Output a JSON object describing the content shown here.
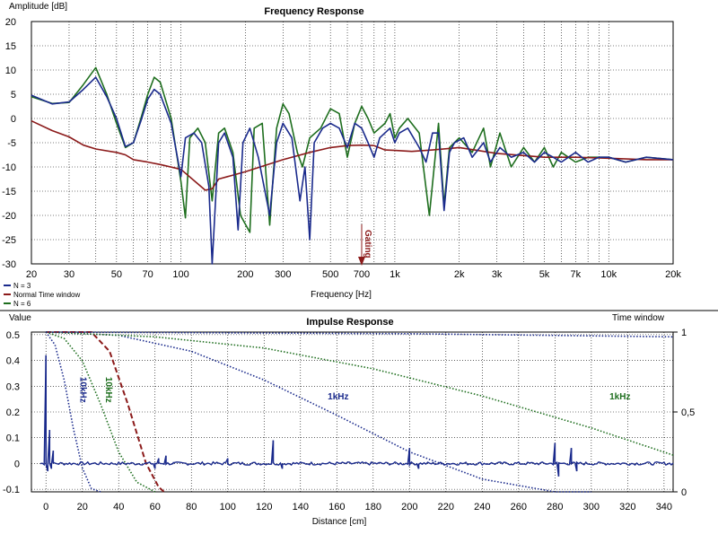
{
  "colors": {
    "blue": "#1a2a8c",
    "red": "#8b1a1a",
    "green": "#1e6e1e",
    "grid": "#000000"
  },
  "chart_data": [
    {
      "type": "line",
      "title": "Frequency Response",
      "ylabel": "Amplitude [dB]",
      "xlabel": "Frequency [Hz]",
      "x_scale": "log",
      "xlim": [
        20,
        20000
      ],
      "ylim": [
        -30,
        20
      ],
      "y_ticks": [
        "20",
        "15",
        "10",
        "5",
        "0",
        "-5",
        "-10",
        "-15",
        "-20",
        "-25",
        "-30"
      ],
      "x_ticks": [
        "20",
        "30",
        "50",
        "70",
        "100",
        "200",
        "300",
        "500",
        "700",
        "1k",
        "2k",
        "3k",
        "5k",
        "7k",
        "10k",
        "20k"
      ],
      "grid": true,
      "legend_position": "bottom-left",
      "annotation": {
        "text": "Gating",
        "x": 700
      },
      "series": [
        {
          "name": "N = 3",
          "color": "blue",
          "points": [
            [
              20,
              4.8
            ],
            [
              25,
              3.0
            ],
            [
              30,
              3.4
            ],
            [
              35,
              6.0
            ],
            [
              40,
              8.5
            ],
            [
              45,
              4.5
            ],
            [
              50,
              0
            ],
            [
              55,
              -5.8
            ],
            [
              60,
              -5.0
            ],
            [
              65,
              -0.5
            ],
            [
              70,
              4.0
            ],
            [
              75,
              6.0
            ],
            [
              80,
              5.0
            ],
            [
              90,
              -1.0
            ],
            [
              100,
              -12
            ],
            [
              105,
              -4
            ],
            [
              115,
              -3
            ],
            [
              125,
              -5
            ],
            [
              135,
              -14
            ],
            [
              140,
              -30
            ],
            [
              150,
              -5
            ],
            [
              160,
              -3
            ],
            [
              175,
              -8
            ],
            [
              185,
              -23
            ],
            [
              195,
              -5
            ],
            [
              210,
              -2
            ],
            [
              230,
              -8
            ],
            [
              260,
              -20
            ],
            [
              280,
              -5
            ],
            [
              300,
              -1
            ],
            [
              330,
              -4
            ],
            [
              360,
              -17
            ],
            [
              380,
              -10
            ],
            [
              400,
              -25
            ],
            [
              420,
              -5
            ],
            [
              460,
              -2
            ],
            [
              500,
              -1
            ],
            [
              550,
              -2
            ],
            [
              600,
              -6
            ],
            [
              650,
              -1
            ],
            [
              700,
              -2
            ],
            [
              750,
              -5
            ],
            [
              800,
              -8
            ],
            [
              850,
              -4
            ],
            [
              950,
              -2
            ],
            [
              1000,
              -5
            ],
            [
              1050,
              -3
            ],
            [
              1150,
              -2
            ],
            [
              1300,
              -6
            ],
            [
              1400,
              -9
            ],
            [
              1500,
              -3
            ],
            [
              1600,
              -3
            ],
            [
              1700,
              -19
            ],
            [
              1800,
              -7
            ],
            [
              1900,
              -5
            ],
            [
              2100,
              -4
            ],
            [
              2300,
              -8
            ],
            [
              2600,
              -5
            ],
            [
              2800,
              -9
            ],
            [
              3100,
              -6
            ],
            [
              3500,
              -8
            ],
            [
              4000,
              -7
            ],
            [
              4500,
              -9
            ],
            [
              5000,
              -7
            ],
            [
              5500,
              -8
            ],
            [
              6000,
              -9
            ],
            [
              7000,
              -7
            ],
            [
              8000,
              -9
            ],
            [
              9000,
              -8
            ],
            [
              10000,
              -8
            ],
            [
              12000,
              -9
            ],
            [
              15000,
              -8
            ],
            [
              20000,
              -8.5
            ]
          ]
        },
        {
          "name": "Normal Time window",
          "color": "red",
          "points": [
            [
              20,
              -0.5
            ],
            [
              25,
              -2.5
            ],
            [
              30,
              -3.8
            ],
            [
              35,
              -5.5
            ],
            [
              40,
              -6.3
            ],
            [
              50,
              -7.0
            ],
            [
              55,
              -7.5
            ],
            [
              60,
              -8.5
            ],
            [
              70,
              -9.0
            ],
            [
              80,
              -9.5
            ],
            [
              100,
              -10.5
            ],
            [
              120,
              -13.5
            ],
            [
              130,
              -14.8
            ],
            [
              140,
              -14.5
            ],
            [
              150,
              -12.5
            ],
            [
              200,
              -11.0
            ],
            [
              300,
              -8.5
            ],
            [
              400,
              -7.0
            ],
            [
              500,
              -6.0
            ],
            [
              600,
              -5.6
            ],
            [
              700,
              -5.5
            ],
            [
              800,
              -5.6
            ],
            [
              900,
              -6.5
            ],
            [
              1000,
              -6.6
            ],
            [
              1200,
              -6.8
            ],
            [
              1500,
              -6.5
            ],
            [
              2000,
              -6.0
            ],
            [
              3000,
              -7.2
            ],
            [
              5000,
              -8.0
            ],
            [
              7000,
              -8.0
            ],
            [
              10000,
              -8.2
            ],
            [
              15000,
              -8.5
            ],
            [
              20000,
              -8.5
            ]
          ]
        },
        {
          "name": "N = 6",
          "color": "green",
          "points": [
            [
              20,
              4.5
            ],
            [
              25,
              3.1
            ],
            [
              30,
              3.3
            ],
            [
              35,
              7.0
            ],
            [
              40,
              10.5
            ],
            [
              45,
              5.0
            ],
            [
              50,
              -1.0
            ],
            [
              55,
              -6.0
            ],
            [
              60,
              -5.0
            ],
            [
              65,
              0
            ],
            [
              70,
              5.0
            ],
            [
              75,
              8.5
            ],
            [
              80,
              7.5
            ],
            [
              90,
              0
            ],
            [
              100,
              -13
            ],
            [
              105,
              -20.5
            ],
            [
              110,
              -4
            ],
            [
              120,
              -2
            ],
            [
              130,
              -5
            ],
            [
              140,
              -17
            ],
            [
              150,
              -3
            ],
            [
              160,
              -2
            ],
            [
              175,
              -7
            ],
            [
              190,
              -20
            ],
            [
              210,
              -23.5
            ],
            [
              220,
              -2
            ],
            [
              240,
              -1
            ],
            [
              260,
              -22
            ],
            [
              280,
              -2
            ],
            [
              300,
              3
            ],
            [
              320,
              1
            ],
            [
              350,
              -7
            ],
            [
              370,
              -10
            ],
            [
              400,
              -4
            ],
            [
              450,
              -2
            ],
            [
              500,
              2
            ],
            [
              550,
              1
            ],
            [
              600,
              -8
            ],
            [
              650,
              -1
            ],
            [
              700,
              2.5
            ],
            [
              750,
              0
            ],
            [
              800,
              -3
            ],
            [
              900,
              -1
            ],
            [
              950,
              1
            ],
            [
              1000,
              -4
            ],
            [
              1050,
              -2
            ],
            [
              1150,
              0
            ],
            [
              1300,
              -3
            ],
            [
              1450,
              -20
            ],
            [
              1600,
              -1
            ],
            [
              1700,
              -18
            ],
            [
              1800,
              -6
            ],
            [
              2000,
              -4
            ],
            [
              2300,
              -7
            ],
            [
              2600,
              -2
            ],
            [
              2800,
              -10
            ],
            [
              3100,
              -3
            ],
            [
              3500,
              -10
            ],
            [
              4000,
              -6
            ],
            [
              4500,
              -9
            ],
            [
              5000,
              -6
            ],
            [
              5500,
              -10
            ],
            [
              6000,
              -7
            ],
            [
              7000,
              -9
            ],
            [
              8000,
              -8
            ],
            [
              9000,
              -8
            ],
            [
              10000,
              -8
            ],
            [
              12000,
              -9
            ],
            [
              15000,
              -8
            ],
            [
              20000,
              -8.5
            ]
          ]
        }
      ]
    },
    {
      "type": "line",
      "title": "Impulse Response",
      "ylabel": "Value",
      "y2label": "Time window",
      "xlabel": "Distance [cm]",
      "xlim": [
        -8,
        345
      ],
      "ylim": [
        -0.11,
        0.51
      ],
      "y2lim": [
        0,
        1
      ],
      "y_ticks": [
        "0.5",
        "0.4",
        "0.3",
        "0.2",
        "0.1",
        "0",
        "-0.1"
      ],
      "y2_ticks": [
        "1",
        "0,5",
        "0"
      ],
      "x_ticks": [
        "0",
        "20",
        "40",
        "60",
        "80",
        "100",
        "120",
        "140",
        "160",
        "180",
        "200",
        "220",
        "240",
        "260",
        "280",
        "300",
        "320",
        "340"
      ],
      "grid": true,
      "impulse": {
        "color": "blue",
        "baseline": 0,
        "spikes": [
          [
            0,
            0.42
          ],
          [
            1,
            -0.03
          ],
          [
            2,
            0.13
          ],
          [
            3,
            -0.02
          ],
          [
            4,
            0.05
          ],
          [
            60,
            -0.02
          ],
          [
            62,
            0.02
          ],
          [
            66,
            0.03
          ],
          [
            70,
            0.0
          ],
          [
            100,
            0.02
          ],
          [
            125,
            0.09
          ],
          [
            130,
            -0.02
          ],
          [
            200,
            0.06
          ],
          [
            205,
            -0.02
          ],
          [
            280,
            0.08
          ],
          [
            282,
            -0.05
          ],
          [
            289,
            0.06
          ],
          [
            292,
            -0.03
          ]
        ]
      },
      "windows": [
        {
          "label": "10kHz",
          "color": "blue",
          "style": "dotted",
          "points": [
            [
              0,
              1
            ],
            [
              5,
              0.92
            ],
            [
              10,
              0.7
            ],
            [
              15,
              0.4
            ],
            [
              20,
              0.15
            ],
            [
              25,
              0.02
            ],
            [
              30,
              0
            ]
          ]
        },
        {
          "label": "10kHz",
          "color": "green",
          "style": "dotted",
          "points": [
            [
              0,
              1
            ],
            [
              10,
              0.96
            ],
            [
              20,
              0.82
            ],
            [
              30,
              0.55
            ],
            [
              40,
              0.25
            ],
            [
              50,
              0.06
            ],
            [
              60,
              0
            ]
          ]
        },
        {
          "label": "",
          "color": "red",
          "style": "dashed",
          "points": [
            [
              0,
              1
            ],
            [
              25,
              1
            ],
            [
              35,
              0.88
            ],
            [
              45,
              0.55
            ],
            [
              55,
              0.18
            ],
            [
              62,
              0.03
            ],
            [
              65,
              0
            ]
          ]
        },
        {
          "label": "1kHz",
          "color": "blue",
          "style": "dotted",
          "points": [
            [
              0,
              1
            ],
            [
              40,
              0.98
            ],
            [
              80,
              0.88
            ],
            [
              120,
              0.7
            ],
            [
              160,
              0.48
            ],
            [
              200,
              0.25
            ],
            [
              240,
              0.08
            ],
            [
              280,
              0.0
            ],
            [
              300,
              0
            ]
          ]
        },
        {
          "label": "1kHz",
          "color": "green",
          "style": "dotted",
          "points": [
            [
              0,
              1
            ],
            [
              60,
              0.97
            ],
            [
              120,
              0.9
            ],
            [
              180,
              0.77
            ],
            [
              240,
              0.6
            ],
            [
              300,
              0.4
            ],
            [
              345,
              0.23
            ]
          ]
        },
        {
          "label": "",
          "color": "blue",
          "style": "dotted",
          "points": [
            [
              0,
              1
            ],
            [
              100,
              0.995
            ],
            [
              200,
              0.99
            ],
            [
              345,
              0.97
            ]
          ]
        }
      ],
      "window_labels": [
        {
          "text": "10kHz",
          "color": "blue",
          "x": 19,
          "y2": 0.72,
          "rotate": 90
        },
        {
          "text": "10kHz",
          "color": "green",
          "x": 33,
          "y2": 0.72,
          "rotate": 90
        },
        {
          "text": "1kHz",
          "color": "blue",
          "x": 155,
          "y2": 0.58,
          "rotate": 0
        },
        {
          "text": "1kHz",
          "color": "green",
          "x": 310,
          "y2": 0.58,
          "rotate": 0
        }
      ]
    }
  ]
}
